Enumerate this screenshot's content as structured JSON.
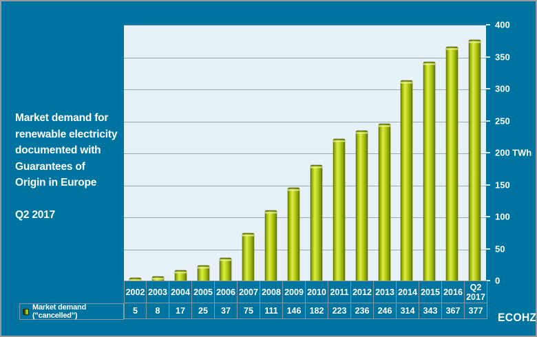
{
  "frame": {
    "logo": "ECOHZ"
  },
  "title": {
    "lines": [
      "Market demand for",
      "renewable electricity",
      "documented with",
      "Guarantees of",
      "Origin in Europe"
    ],
    "period": "Q2 2017"
  },
  "legend": {
    "label": "Market demand (\"cancelled\")"
  },
  "y_axis": {
    "unit": "TWh"
  },
  "colors": {
    "background": "#0074a1",
    "plot_background": "#e7f2f8",
    "bar": "#b5cc1b",
    "text": "#ffffff",
    "gridline": "#9dacb3"
  },
  "chart_data": {
    "type": "bar",
    "title": "Market demand for renewable electricity documented with Guarantees of Origin in Europe",
    "subtitle": "Q2 2017",
    "series_name": "Market demand (\"cancelled\")",
    "categories": [
      "2002",
      "2003",
      "2004",
      "2005",
      "2006",
      "2007",
      "2008",
      "2009",
      "2010",
      "2011",
      "2012",
      "2013",
      "2014",
      "2015",
      "2016",
      "Q2 2017"
    ],
    "values": [
      5,
      8,
      17,
      25,
      37,
      75,
      111,
      146,
      182,
      223,
      236,
      246,
      314,
      343,
      367,
      377
    ],
    "xlabel": "",
    "ylabel": "TWh",
    "ylim": [
      0,
      400
    ],
    "ytick_interval": 50,
    "grid": true,
    "legend_position": "bottom-left",
    "axis_side": "right",
    "bar_color": "#b5cc1b"
  }
}
